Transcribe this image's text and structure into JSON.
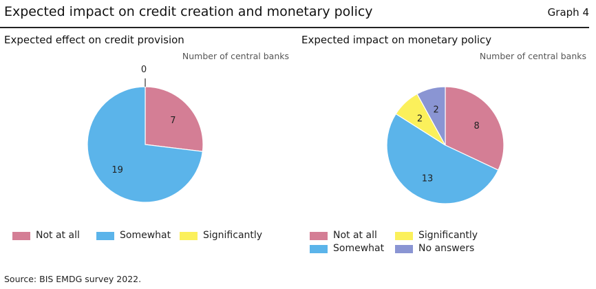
{
  "header": {
    "title": "Expected impact on credit creation and monetary policy",
    "graph_label": "Graph 4"
  },
  "colors": {
    "not_at_all": "#D47E95",
    "somewhat": "#5BB4EA",
    "significantly": "#FBF05B",
    "no_answers": "#8A95D3"
  },
  "chart_data": [
    {
      "type": "pie",
      "title": "Expected effect on credit provision",
      "unit_label": "Number of central banks",
      "slices": [
        {
          "label": "Not at all",
          "value": 7,
          "color": "#D47E95"
        },
        {
          "label": "Somewhat",
          "value": 19,
          "color": "#5BB4EA"
        },
        {
          "label": "Significantly",
          "value": 0,
          "color": "#FBF05B"
        }
      ],
      "legend": [
        "Not at all",
        "Somewhat",
        "Significantly"
      ],
      "start_angle_deg": 0,
      "direction": "clockwise"
    },
    {
      "type": "pie",
      "title": "Expected impact on monetary policy",
      "unit_label": "Number of central banks",
      "slices": [
        {
          "label": "Not at all",
          "value": 8,
          "color": "#D47E95"
        },
        {
          "label": "Somewhat",
          "value": 13,
          "color": "#5BB4EA"
        },
        {
          "label": "Significantly",
          "value": 2,
          "color": "#FBF05B"
        },
        {
          "label": "No answers",
          "value": 2,
          "color": "#8A95D3"
        }
      ],
      "legend": [
        "Not at all",
        "Significantly",
        "Somewhat",
        "No answers"
      ],
      "start_angle_deg": 0,
      "direction": "clockwise"
    }
  ],
  "footer": {
    "source": "Source: BIS EMDG survey 2022."
  }
}
